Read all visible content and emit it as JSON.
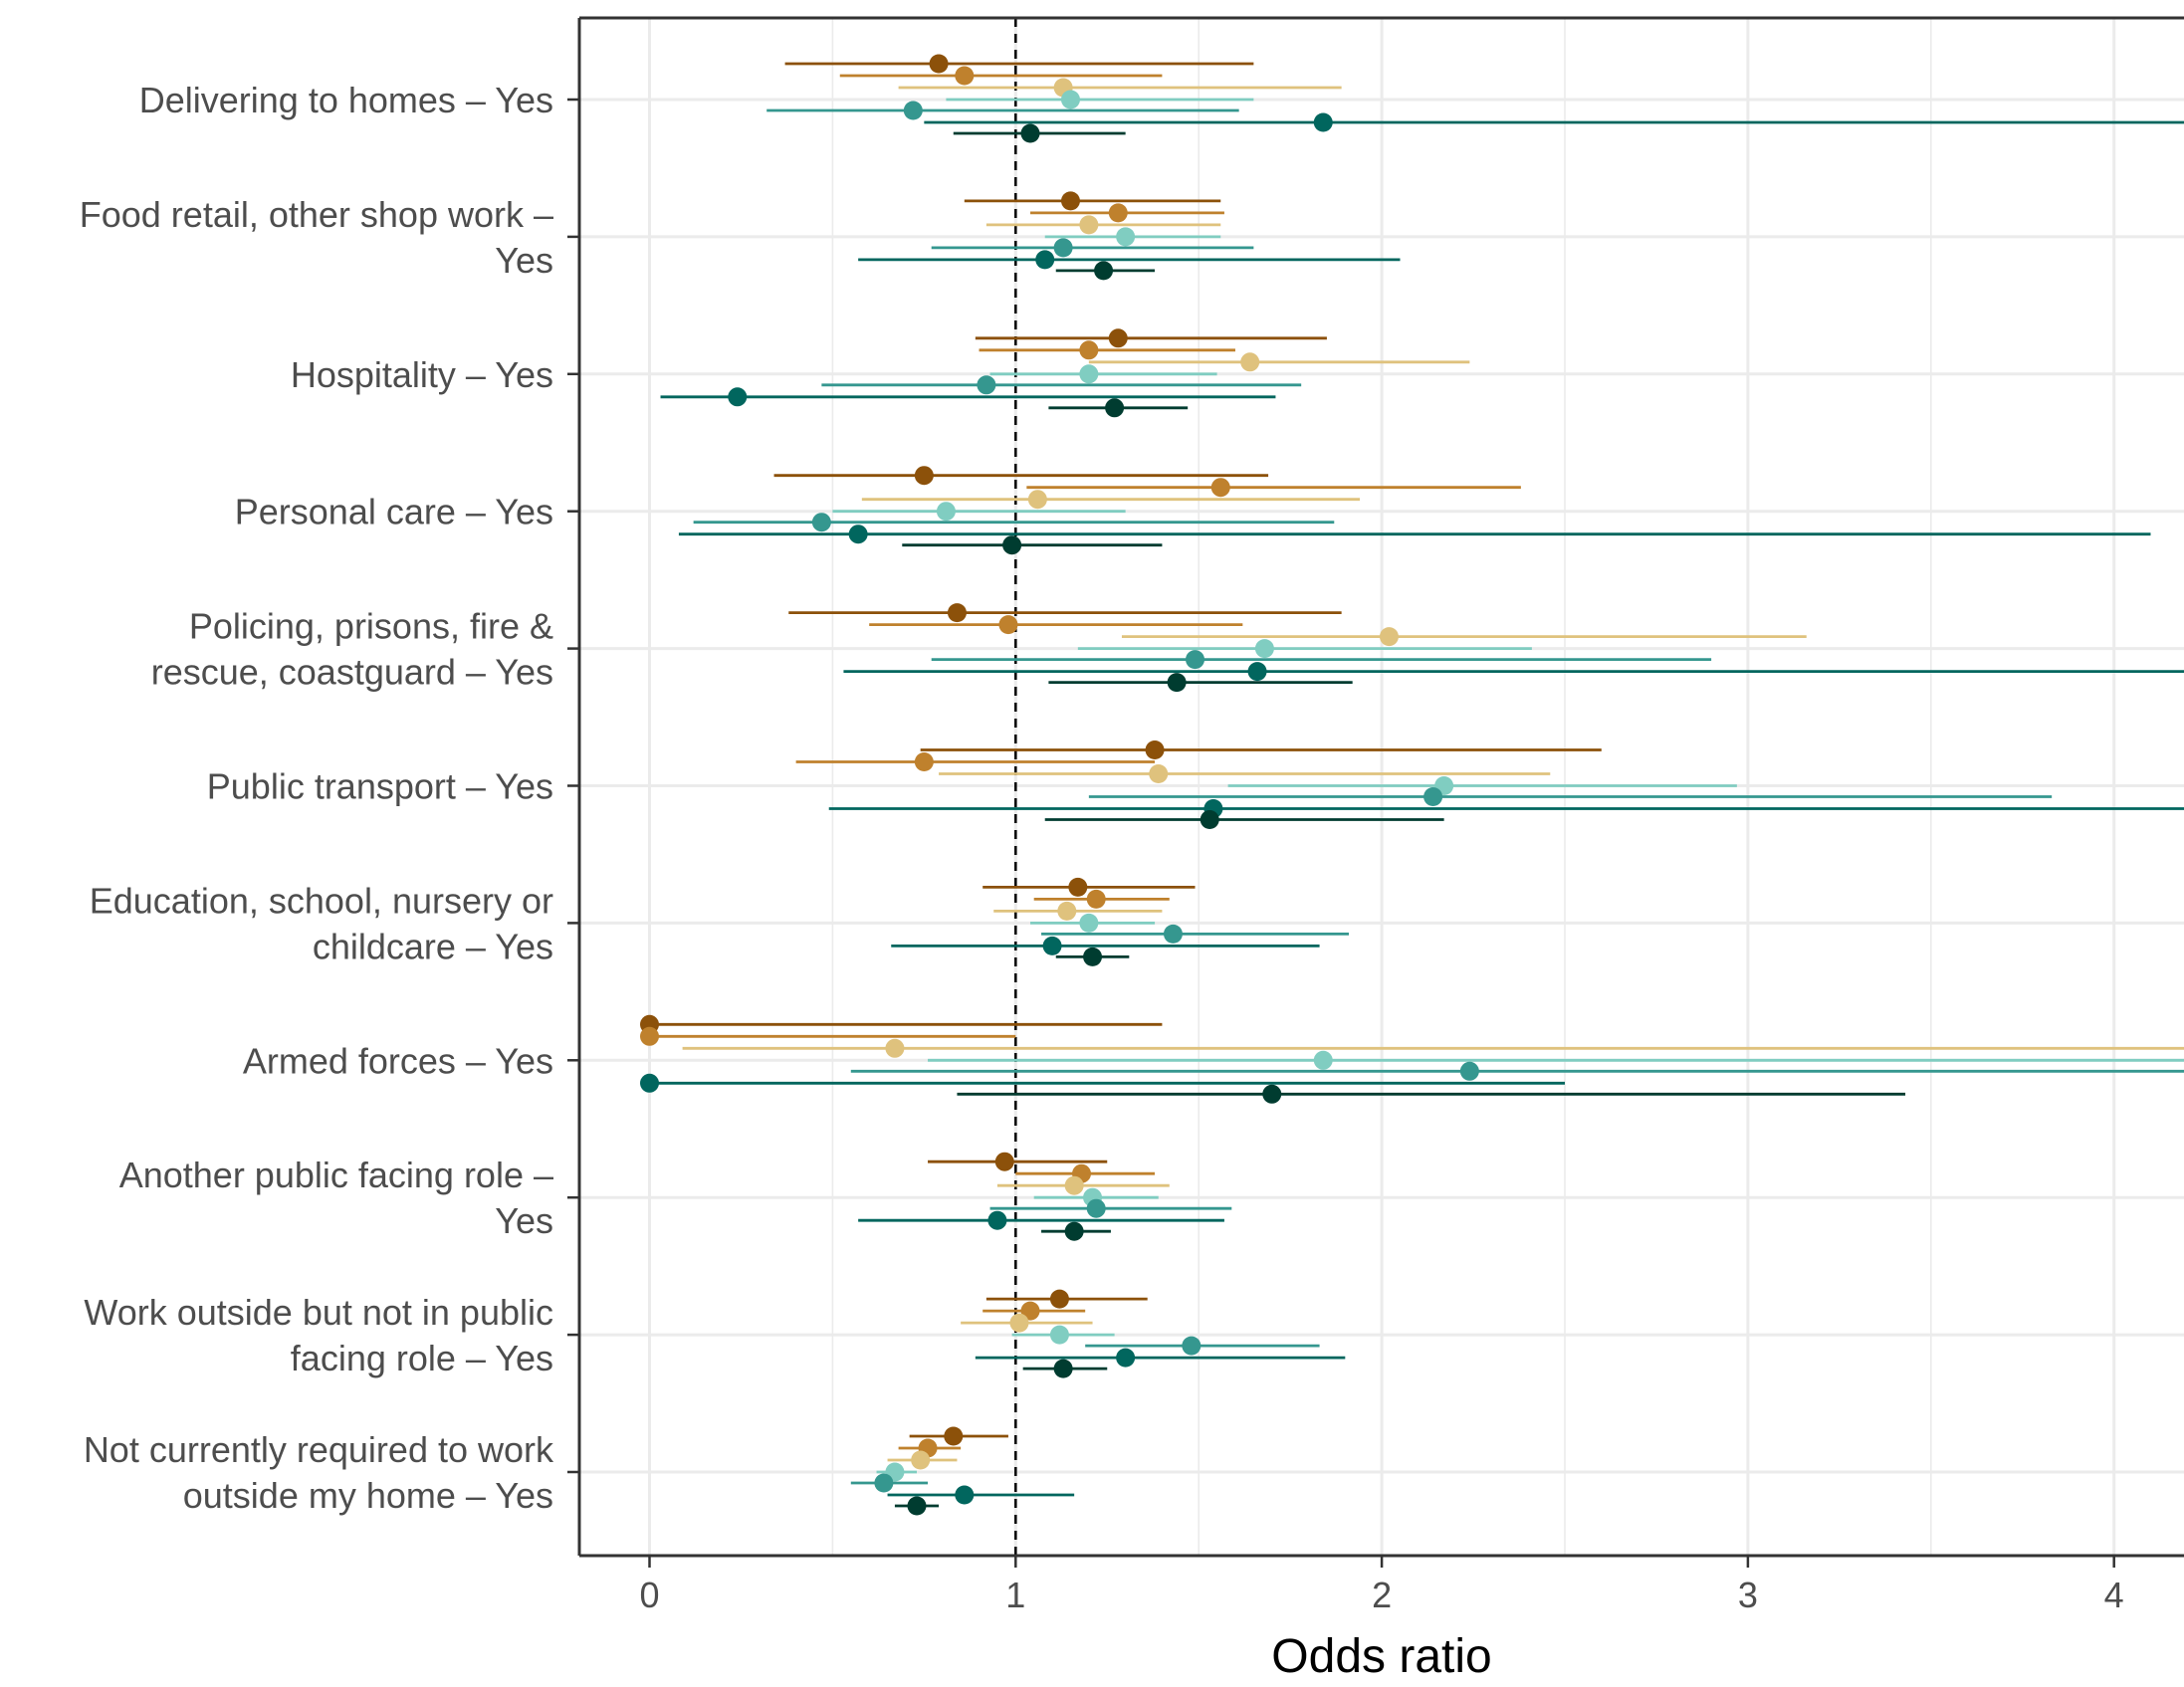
{
  "chart_data": {
    "type": "forest",
    "xlabel": "Odds ratio",
    "ylabel": "",
    "xlim": [
      -0.2,
      4.2
    ],
    "x_ticks": [
      0,
      1,
      2,
      3,
      4
    ],
    "x_tick_labels": [
      "0",
      "1",
      "2",
      "3",
      "4"
    ],
    "reference_line": 1,
    "grid": true,
    "legend": "none",
    "series_colors": [
      "#8c510a",
      "#bf812d",
      "#dfc27d",
      "#80cdc1",
      "#35978f",
      "#01665e",
      "#003c30"
    ],
    "categories": [
      {
        "label": "Delivering to homes – Yes",
        "points": [
          {
            "or": 0.79,
            "lo": 0.37,
            "hi": 1.65
          },
          {
            "or": 0.86,
            "lo": 0.52,
            "hi": 1.4
          },
          {
            "or": 1.13,
            "lo": 0.68,
            "hi": 1.89
          },
          {
            "or": 1.15,
            "lo": 0.81,
            "hi": 1.65
          },
          {
            "or": 0.72,
            "lo": 0.32,
            "hi": 1.61
          },
          {
            "or": 1.84,
            "lo": 0.75,
            "hi": 4.2
          },
          {
            "or": 1.04,
            "lo": 0.83,
            "hi": 1.3
          }
        ]
      },
      {
        "label": "Food retail, other shop work – Yes",
        "points": [
          {
            "or": 1.15,
            "lo": 0.86,
            "hi": 1.56
          },
          {
            "or": 1.28,
            "lo": 1.04,
            "hi": 1.57
          },
          {
            "or": 1.2,
            "lo": 0.92,
            "hi": 1.56
          },
          {
            "or": 1.3,
            "lo": 1.08,
            "hi": 1.56
          },
          {
            "or": 1.13,
            "lo": 0.77,
            "hi": 1.65
          },
          {
            "or": 1.08,
            "lo": 0.57,
            "hi": 2.05
          },
          {
            "or": 1.24,
            "lo": 1.11,
            "hi": 1.38
          }
        ]
      },
      {
        "label": "Hospitality – Yes",
        "points": [
          {
            "or": 1.28,
            "lo": 0.89,
            "hi": 1.85
          },
          {
            "or": 1.2,
            "lo": 0.9,
            "hi": 1.6
          },
          {
            "or": 1.64,
            "lo": 1.2,
            "hi": 2.24
          },
          {
            "or": 1.2,
            "lo": 0.93,
            "hi": 1.55
          },
          {
            "or": 0.92,
            "lo": 0.47,
            "hi": 1.78
          },
          {
            "or": 0.24,
            "lo": 0.03,
            "hi": 1.71
          },
          {
            "or": 1.27,
            "lo": 1.09,
            "hi": 1.47
          }
        ]
      },
      {
        "label": "Personal care – Yes",
        "points": [
          {
            "or": 0.75,
            "lo": 0.34,
            "hi": 1.69
          },
          {
            "or": 1.56,
            "lo": 1.03,
            "hi": 2.38
          },
          {
            "or": 1.06,
            "lo": 0.58,
            "hi": 1.94
          },
          {
            "or": 0.81,
            "lo": 0.5,
            "hi": 1.3
          },
          {
            "or": 0.47,
            "lo": 0.12,
            "hi": 1.87
          },
          {
            "or": 0.57,
            "lo": 0.08,
            "hi": 4.1
          },
          {
            "or": 0.99,
            "lo": 0.69,
            "hi": 1.4
          }
        ]
      },
      {
        "label": "Policing, prisons, fire & rescue, coastguard – Yes",
        "points": [
          {
            "or": 0.84,
            "lo": 0.38,
            "hi": 1.89
          },
          {
            "or": 0.98,
            "lo": 0.6,
            "hi": 1.62
          },
          {
            "or": 2.02,
            "lo": 1.29,
            "hi": 3.16
          },
          {
            "or": 1.68,
            "lo": 1.17,
            "hi": 2.41
          },
          {
            "or": 1.49,
            "lo": 0.77,
            "hi": 2.9
          },
          {
            "or": 1.66,
            "lo": 0.53,
            "hi": 4.2
          },
          {
            "or": 1.44,
            "lo": 1.09,
            "hi": 1.92
          }
        ]
      },
      {
        "label": "Public transport – Yes",
        "points": [
          {
            "or": 1.38,
            "lo": 0.74,
            "hi": 2.6
          },
          {
            "or": 0.75,
            "lo": 0.4,
            "hi": 1.38
          },
          {
            "or": 1.39,
            "lo": 0.79,
            "hi": 2.46
          },
          {
            "or": 2.17,
            "lo": 1.58,
            "hi": 2.97
          },
          {
            "or": 2.14,
            "lo": 1.2,
            "hi": 3.83
          },
          {
            "or": 1.54,
            "lo": 0.49,
            "hi": 4.2
          },
          {
            "or": 1.53,
            "lo": 1.08,
            "hi": 2.17
          }
        ]
      },
      {
        "label": "Education, school, nursery or childcare – Yes",
        "points": [
          {
            "or": 1.17,
            "lo": 0.91,
            "hi": 1.49
          },
          {
            "or": 1.22,
            "lo": 1.05,
            "hi": 1.42
          },
          {
            "or": 1.14,
            "lo": 0.94,
            "hi": 1.4
          },
          {
            "or": 1.2,
            "lo": 1.04,
            "hi": 1.38
          },
          {
            "or": 1.43,
            "lo": 1.07,
            "hi": 1.91
          },
          {
            "or": 1.1,
            "lo": 0.66,
            "hi": 1.83
          },
          {
            "or": 1.21,
            "lo": 1.11,
            "hi": 1.31
          }
        ]
      },
      {
        "label": "Armed forces – Yes",
        "points": [
          {
            "or": 0.0,
            "lo": 0.0,
            "hi": 1.4
          },
          {
            "or": 0.0,
            "lo": 0.0,
            "hi": 1.0
          },
          {
            "or": 0.67,
            "lo": 0.09,
            "hi": 4.2
          },
          {
            "or": 1.84,
            "lo": 0.76,
            "hi": 4.2
          },
          {
            "or": 2.24,
            "lo": 0.55,
            "hi": 4.2
          },
          {
            "or": 0.0,
            "lo": 0.0,
            "hi": 2.5
          },
          {
            "or": 1.7,
            "lo": 0.84,
            "hi": 3.43
          }
        ]
      },
      {
        "label": "Another public facing role – Yes",
        "points": [
          {
            "or": 0.97,
            "lo": 0.76,
            "hi": 1.25
          },
          {
            "or": 1.18,
            "lo": 1.0,
            "hi": 1.38
          },
          {
            "or": 1.16,
            "lo": 0.95,
            "hi": 1.42
          },
          {
            "or": 1.21,
            "lo": 1.05,
            "hi": 1.39
          },
          {
            "or": 1.22,
            "lo": 0.93,
            "hi": 1.59
          },
          {
            "or": 0.95,
            "lo": 0.57,
            "hi": 1.57
          },
          {
            "or": 1.16,
            "lo": 1.07,
            "hi": 1.26
          }
        ]
      },
      {
        "label": "Work outside but not in public facing role – Yes",
        "points": [
          {
            "or": 1.12,
            "lo": 0.92,
            "hi": 1.36
          },
          {
            "or": 1.04,
            "lo": 0.91,
            "hi": 1.19
          },
          {
            "or": 1.01,
            "lo": 0.85,
            "hi": 1.21
          },
          {
            "or": 1.12,
            "lo": 0.99,
            "hi": 1.27
          },
          {
            "or": 1.48,
            "lo": 1.19,
            "hi": 1.83
          },
          {
            "or": 1.3,
            "lo": 0.89,
            "hi": 1.9
          },
          {
            "or": 1.13,
            "lo": 1.02,
            "hi": 1.25
          }
        ]
      },
      {
        "label": "Not currently required to work outside my home – Yes",
        "points": [
          {
            "or": 0.83,
            "lo": 0.71,
            "hi": 0.98
          },
          {
            "or": 0.76,
            "lo": 0.68,
            "hi": 0.85
          },
          {
            "or": 0.74,
            "lo": 0.65,
            "hi": 0.84
          },
          {
            "or": 0.67,
            "lo": 0.62,
            "hi": 0.73
          },
          {
            "or": 0.64,
            "lo": 0.55,
            "hi": 0.76
          },
          {
            "or": 0.86,
            "lo": 0.65,
            "hi": 1.16
          },
          {
            "or": 0.73,
            "lo": 0.67,
            "hi": 0.79
          }
        ]
      }
    ]
  }
}
